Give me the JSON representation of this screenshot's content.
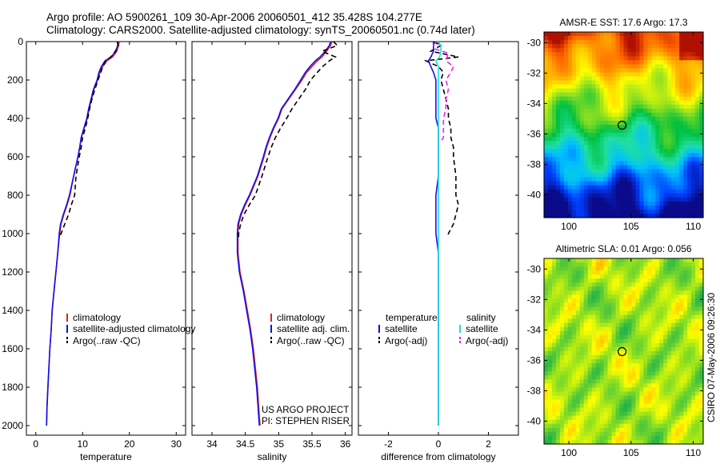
{
  "header": {
    "line1": "Argo profile: AO 5900261_109 30-Apr-2006 20060501_412 35.428S 104.277E",
    "line2": "Climatology: CARS2000. Satellite-adjusted climatology: synTS_20060501.nc (0.74d later)"
  },
  "project": {
    "line1": "US ARGO PROJECT",
    "line2": "PI: STEPHEN RISER"
  },
  "stamp": "CSIRO 07-May-2006 09:26:30",
  "colors": {
    "climatology": "#dd2222",
    "satellite": "#1010ee",
    "argo": "#000000",
    "sal_satellite": "#22dddd",
    "sal_argo": "#ee22ee"
  },
  "chart_data": [
    {
      "type": "line",
      "name": "temperature-profile",
      "xlabel": "temperature",
      "xlim": [
        -2,
        32
      ],
      "xticks": [
        "0",
        "10",
        "20",
        "30"
      ],
      "ylim": [
        0,
        2050
      ],
      "yticks": [
        "0",
        "200",
        "400",
        "600",
        "800",
        "1000",
        "1200",
        "1400",
        "1600",
        "1800",
        "2000"
      ],
      "legend": {
        "location": "lower-right",
        "entries": [
          "climatology",
          "satellite-adjusted climatology",
          "Argo(..raw -QC)"
        ]
      },
      "series": [
        {
          "name": "climatology",
          "x": [
            17.8,
            17.7,
            17.3,
            16.4,
            15.2,
            14.3,
            13.7,
            13.2,
            12.4,
            11.9,
            11.4,
            11.0,
            10.3,
            9.7,
            9.4,
            9.0,
            8.1,
            7.3,
            6.7,
            6.0,
            5.4,
            5.1,
            4.7,
            4.3,
            3.9,
            3.5,
            3.3,
            3.0,
            2.8,
            2.6,
            2.4,
            2.3
          ],
          "depth": [
            0,
            20,
            50,
            80,
            100,
            130,
            160,
            200,
            250,
            300,
            350,
            400,
            450,
            500,
            550,
            600,
            700,
            800,
            850,
            900,
            950,
            1000,
            1100,
            1200,
            1300,
            1400,
            1500,
            1600,
            1700,
            1800,
            1900,
            2000
          ]
        },
        {
          "name": "satellite-adjusted",
          "x": [
            17.6,
            17.5,
            17.1,
            16.1,
            14.8,
            14.0,
            13.5,
            13.1,
            12.3,
            11.8,
            11.3,
            10.9,
            10.3,
            9.7,
            9.4,
            9.0,
            8.1,
            7.2,
            6.6,
            5.9,
            5.3,
            5.0,
            4.7,
            4.3,
            3.9,
            3.5,
            3.3,
            3.0,
            2.8,
            2.6,
            2.4,
            2.3
          ],
          "depth": [
            0,
            20,
            50,
            80,
            100,
            130,
            160,
            200,
            250,
            300,
            350,
            400,
            450,
            500,
            550,
            600,
            700,
            800,
            850,
            900,
            950,
            1000,
            1100,
            1200,
            1300,
            1400,
            1500,
            1600,
            1700,
            1800,
            1900,
            2000
          ]
        },
        {
          "name": "Argo",
          "x": [
            17.4,
            17.6,
            17.0,
            16.0,
            15.0,
            14.3,
            13.9,
            13.3,
            12.6,
            12.0,
            11.5,
            11.1,
            10.6,
            10.0,
            9.7,
            9.3,
            8.6,
            8.3,
            7.6,
            7.0,
            6.2,
            5.4,
            5.0
          ],
          "depth": [
            0,
            20,
            50,
            80,
            100,
            130,
            160,
            200,
            250,
            300,
            350,
            400,
            450,
            500,
            550,
            600,
            700,
            800,
            850,
            900,
            950,
            1000,
            1020
          ]
        }
      ]
    },
    {
      "type": "line",
      "name": "salinity-profile",
      "xlabel": "salinity",
      "xlim": [
        33.7,
        36.1
      ],
      "xticks": [
        "34",
        "34.5",
        "35",
        "35.5",
        "36"
      ],
      "ylim": [
        0,
        2050
      ],
      "legend": {
        "location": "lower-right",
        "entries": [
          "climatology",
          "satellite adj. clim.",
          "Argo(..raw -QC)"
        ]
      },
      "series": [
        {
          "name": "climatology",
          "x": [
            35.8,
            35.78,
            35.72,
            35.65,
            35.58,
            35.5,
            35.42,
            35.35,
            35.25,
            35.15,
            35.05,
            35.0,
            34.93,
            34.87,
            34.82,
            34.78,
            34.69,
            34.57,
            34.5,
            34.44,
            34.4,
            34.39,
            34.39,
            34.42,
            34.48,
            34.53,
            34.58,
            34.62,
            34.65,
            34.68,
            34.7,
            34.72
          ],
          "depth": [
            0,
            20,
            50,
            80,
            100,
            130,
            160,
            200,
            250,
            300,
            350,
            400,
            450,
            500,
            550,
            600,
            700,
            800,
            850,
            900,
            950,
            1000,
            1100,
            1200,
            1300,
            1400,
            1500,
            1600,
            1700,
            1800,
            1900,
            2000
          ]
        },
        {
          "name": "satellite-adjusted",
          "x": [
            35.78,
            35.76,
            35.7,
            35.62,
            35.55,
            35.47,
            35.4,
            35.33,
            35.24,
            35.14,
            35.04,
            34.99,
            34.92,
            34.86,
            34.81,
            34.77,
            34.68,
            34.56,
            34.49,
            34.43,
            34.39,
            34.38,
            34.38,
            34.41,
            34.47,
            34.52,
            34.57,
            34.61,
            34.64,
            34.67,
            34.69,
            34.71
          ],
          "depth": [
            0,
            20,
            50,
            80,
            100,
            130,
            160,
            200,
            250,
            300,
            350,
            400,
            450,
            500,
            550,
            600,
            700,
            800,
            850,
            900,
            950,
            1000,
            1100,
            1200,
            1300,
            1400,
            1500,
            1600,
            1700,
            1800,
            1900,
            2000
          ]
        },
        {
          "name": "Argo",
          "x": [
            35.82,
            35.88,
            35.65,
            35.85,
            35.76,
            35.66,
            35.58,
            35.48,
            35.4,
            35.3,
            35.2,
            35.12,
            35.03,
            34.95,
            34.89,
            34.84,
            34.75,
            34.65,
            34.56,
            34.48,
            34.43,
            34.4,
            34.4
          ],
          "depth": [
            0,
            20,
            50,
            80,
            100,
            130,
            160,
            200,
            250,
            300,
            350,
            400,
            450,
            500,
            550,
            600,
            700,
            800,
            850,
            900,
            950,
            1000,
            1020
          ]
        }
      ]
    },
    {
      "type": "line",
      "name": "difference-from-climatology",
      "xlabel": "difference from climatology",
      "xlim": [
        -3.2,
        3.2
      ],
      "xticks": [
        "-2",
        "0",
        "2"
      ],
      "ylim": [
        0,
        2050
      ],
      "legend": {
        "location": "lower-center",
        "temperature_title": "temperature",
        "salinity_title": "salinity",
        "temperature_entries": [
          "satellite",
          "Argo(-adj)"
        ],
        "salinity_entries": [
          "satellite",
          "Argo(-adj)"
        ]
      },
      "series": [
        {
          "name": "temperature satellite",
          "x": [
            -0.2,
            -0.2,
            -0.2,
            -0.3,
            -0.4,
            -0.3,
            -0.2,
            -0.1,
            -0.1,
            -0.1,
            -0.1,
            -0.1,
            0.0,
            0.0,
            0.0,
            0.0,
            0.0,
            -0.1,
            -0.1,
            -0.1,
            -0.1,
            -0.1,
            0.0,
            0.0,
            0.0,
            0.0,
            0.0,
            0.0,
            0.0,
            0.0,
            0.0,
            0.0
          ],
          "depth": [
            0,
            20,
            50,
            80,
            100,
            130,
            160,
            200,
            250,
            300,
            350,
            400,
            450,
            500,
            550,
            600,
            700,
            800,
            850,
            900,
            950,
            1000,
            1100,
            1200,
            1300,
            1400,
            1500,
            1600,
            1700,
            1800,
            1900,
            2000
          ]
        },
        {
          "name": "temperature Argo(-adj)",
          "x": [
            -0.2,
            0.1,
            -0.3,
            0.8,
            -0.5,
            0.0,
            0.2,
            0.1,
            0.2,
            0.3,
            0.4,
            0.4,
            0.5,
            0.5,
            0.6,
            0.6,
            0.7,
            0.7,
            0.8,
            0.7,
            0.6,
            0.4,
            0.4
          ],
          "depth": [
            0,
            20,
            50,
            80,
            100,
            130,
            160,
            200,
            250,
            300,
            350,
            400,
            450,
            500,
            550,
            600,
            700,
            800,
            850,
            900,
            950,
            1000,
            1020
          ]
        },
        {
          "name": "salinity satellite",
          "x": [
            0.0,
            0.1,
            0.1,
            0.05,
            -0.1,
            0.0,
            0.0,
            0.0,
            0.0,
            0.0,
            0.0,
            0.0,
            0.0,
            0.0,
            0.0,
            0.0,
            0.0,
            0.0,
            0.0,
            0.0,
            0.0,
            0.0,
            0.0,
            0.0,
            0.0,
            0.0,
            0.0,
            0.0,
            0.0,
            0.0,
            0.0,
            0.0
          ],
          "depth": [
            0,
            20,
            50,
            80,
            100,
            130,
            160,
            200,
            250,
            300,
            350,
            400,
            450,
            500,
            550,
            600,
            700,
            800,
            850,
            900,
            950,
            1000,
            1100,
            1200,
            1300,
            1400,
            1500,
            1600,
            1700,
            1800,
            1900,
            2000
          ]
        },
        {
          "name": "salinity Argo(-adj)",
          "x": [
            -0.1,
            -0.2,
            -0.1,
            0.4,
            0.3,
            0.6,
            0.5,
            0.3,
            0.4,
            0.3,
            0.3,
            0.2,
            0.2,
            0.2,
            0.1
          ],
          "depth": [
            0,
            20,
            40,
            60,
            100,
            130,
            160,
            200,
            250,
            300,
            350,
            400,
            450,
            500,
            520
          ]
        }
      ]
    },
    {
      "type": "heatmap",
      "name": "amsr-e-sst-map",
      "title": "AMSR-E SST: 17.6 Argo: 17.3",
      "xlim": [
        98,
        110.8
      ],
      "ylim": [
        -41.5,
        -29.3
      ],
      "xticks": [
        "100",
        "105",
        "110"
      ],
      "yticks": [
        "-30",
        "-32",
        "-34",
        "-36",
        "-38",
        "-40"
      ],
      "marker": {
        "lon": 104.277,
        "lat": -35.428
      },
      "color_scale": [
        "#0a0a8a",
        "#0040ff",
        "#00c0ff",
        "#20e0a0",
        "#00c040",
        "#90e020",
        "#ffff00",
        "#ffb000",
        "#ff6000",
        "#b01000"
      ]
    },
    {
      "type": "heatmap",
      "name": "altimetric-sla-map",
      "title": "Altimetric SLA: 0.01 Argo: 0.056",
      "xlim": [
        98,
        110.8
      ],
      "ylim": [
        -41.5,
        -29.3
      ],
      "xticks": [
        "100",
        "105",
        "110"
      ],
      "yticks": [
        "-30",
        "-32",
        "-34",
        "-36",
        "-38",
        "-40"
      ],
      "marker": {
        "lon": 104.277,
        "lat": -35.428
      },
      "color_scale": [
        "#00a050",
        "#40c040",
        "#90e020",
        "#ffff00",
        "#ffb000"
      ]
    }
  ]
}
